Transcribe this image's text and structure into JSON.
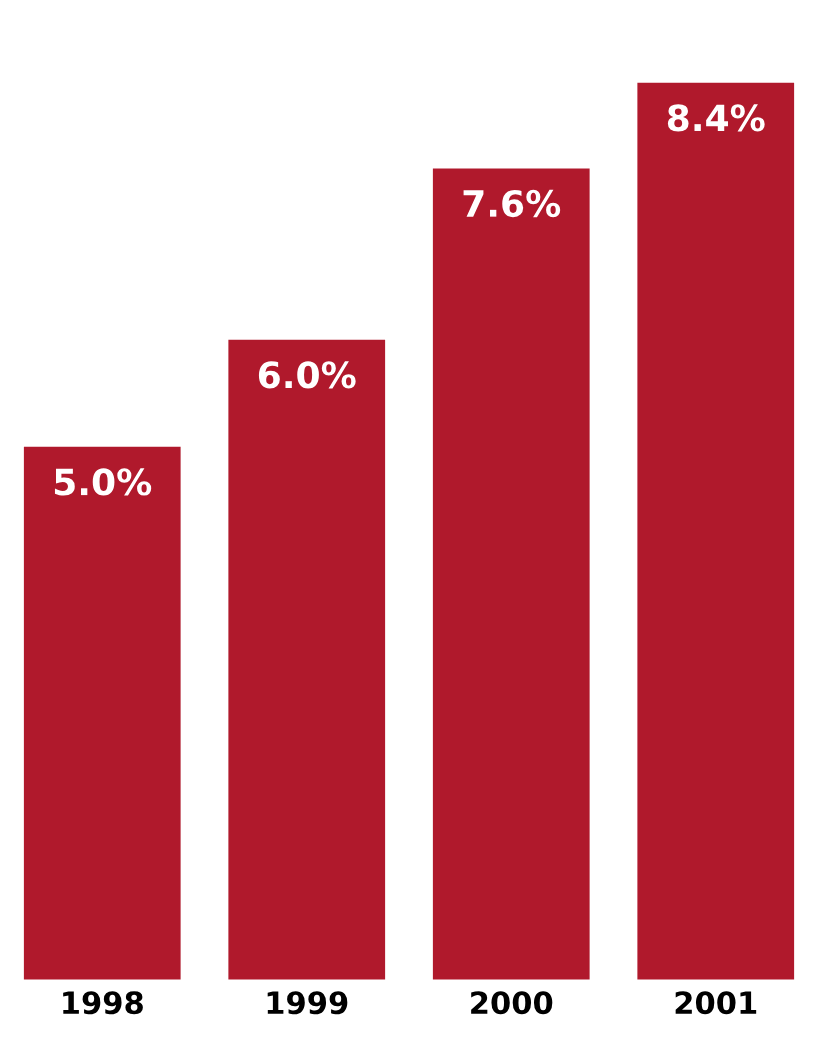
{
  "chart_data": {
    "type": "bar",
    "categories": [
      "1998",
      "1999",
      "2000",
      "2001"
    ],
    "values": [
      5.0,
      6.0,
      7.6,
      8.4
    ],
    "value_labels": [
      "5.0%",
      "6.0%",
      "7.6%",
      "8.4%"
    ],
    "color": "#b0192c"
  }
}
